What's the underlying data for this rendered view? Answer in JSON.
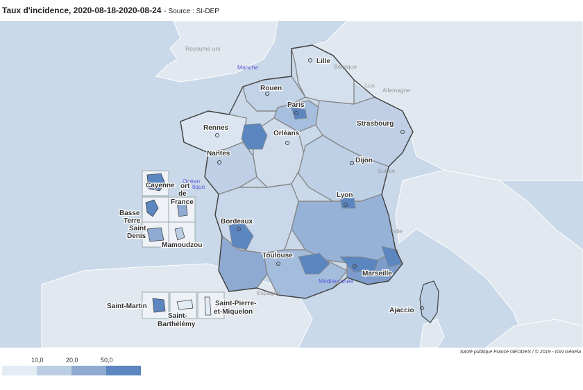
{
  "header": {
    "title": "Taux d'incidence, 2020-08-18-2020-08-24",
    "source": "- Source : SI-DEP"
  },
  "credit": "Santé publique France GÉODES / © 2019 - IGN GéoFla",
  "legend": {
    "thresholds": [
      "10,0",
      "20,0",
      "50,0"
    ],
    "colors": [
      "#e3ebf4",
      "#bccee3",
      "#8eaad2",
      "#5b86c0"
    ]
  },
  "map": {
    "countries": {
      "uk": "Royaume uni",
      "belgium": "Belgique",
      "lux": "Lux.",
      "germany": "Allemagne",
      "switzerland": "Suisse",
      "italy": "Italie",
      "spain": "Espagne"
    },
    "seas": {
      "manche": "Manche",
      "ocean_1": "Océan",
      "ocean_2": "tique",
      "med": "Méditerranée"
    },
    "cities": {
      "lille": "Lille",
      "rouen": "Rouen",
      "paris": "Paris",
      "strasbourg": "Strasbourg",
      "rennes": "Rennes",
      "orleans": "Orléans",
      "nantes": "Nantes",
      "dijon": "Dijon",
      "lyon": "Lyon",
      "bordeaux": "Bordeaux",
      "toulouse": "Toulouse",
      "marseille": "Marseille",
      "ajaccio": "Ajaccio"
    },
    "overseas": {
      "cayenne": "Cayenne",
      "fdf_1": "ort",
      "fdf_2": "de",
      "fdf_3": "France",
      "bt_1": "Basse",
      "bt_2": "Terre",
      "sd_1": "Saint",
      "sd_2": "Denis",
      "mamoudzou": "Mamoudzou",
      "saint_martin": "Saint-Martin",
      "sb_1": "Saint-",
      "sb_2": "Barthélémy",
      "spm_1": "Saint-Pierre-",
      "spm_2": "et-Miquelon"
    }
  }
}
